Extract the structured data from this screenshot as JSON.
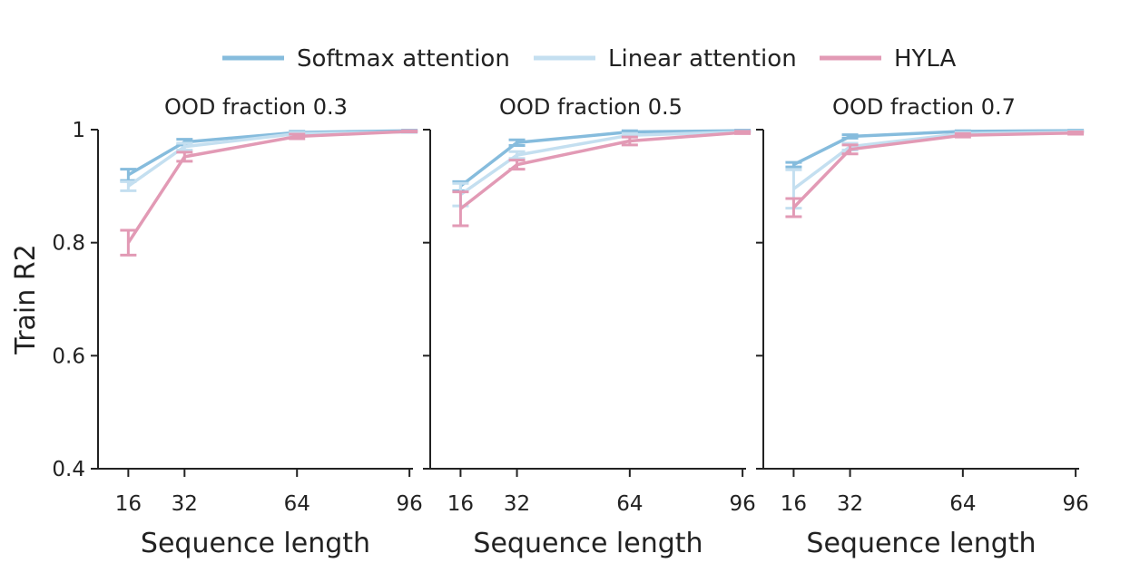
{
  "chart_data": [
    {
      "type": "line",
      "title": "OOD fraction 0.3",
      "xlabel": "Sequence length",
      "ylabel": "Train R2",
      "x": [
        16,
        32,
        64,
        96
      ],
      "x_ticks": [
        "16",
        "32",
        "64",
        "96"
      ],
      "xlim": [
        11,
        97
      ],
      "ylim": [
        0.4,
        1.0
      ],
      "y_ticks": [
        "0.4",
        "0.6",
        "0.8",
        "1"
      ],
      "y_tick_values": [
        0.4,
        0.6,
        0.8,
        1.0
      ],
      "grid": false,
      "series": [
        {
          "name": "Softmax attention",
          "values": [
            0.92,
            0.978,
            0.995,
            0.998
          ],
          "err": [
            0.01,
            0.005,
            0.002,
            0.001
          ]
        },
        {
          "name": "Linear attention",
          "values": [
            0.9,
            0.97,
            0.993,
            0.996
          ],
          "err": [
            0.008,
            0.006,
            0.002,
            0.001
          ]
        },
        {
          "name": "HYLA",
          "values": [
            0.8,
            0.952,
            0.988,
            0.997
          ],
          "err": [
            0.022,
            0.008,
            0.004,
            0.001
          ]
        }
      ]
    },
    {
      "type": "line",
      "title": "OOD fraction 0.5",
      "xlabel": "Sequence length",
      "ylabel": "",
      "x": [
        16,
        32,
        64,
        96
      ],
      "x_ticks": [
        "16",
        "32",
        "64",
        "96"
      ],
      "xlim": [
        11,
        97
      ],
      "ylim": [
        0.4,
        1.0
      ],
      "y_ticks": [
        "",
        "",
        "",
        ""
      ],
      "y_tick_values": [
        0.4,
        0.6,
        0.8,
        1.0
      ],
      "grid": false,
      "series": [
        {
          "name": "Softmax attention",
          "values": [
            0.9,
            0.977,
            0.996,
            0.998
          ],
          "err": [
            0.008,
            0.005,
            0.002,
            0.001
          ]
        },
        {
          "name": "Linear attention",
          "values": [
            0.885,
            0.955,
            0.99,
            0.996
          ],
          "err": [
            0.02,
            0.006,
            0.003,
            0.001
          ]
        },
        {
          "name": "HYLA",
          "values": [
            0.86,
            0.938,
            0.98,
            0.995
          ],
          "err": [
            0.03,
            0.008,
            0.007,
            0.002
          ]
        }
      ]
    },
    {
      "type": "line",
      "title": "OOD fraction 0.7",
      "xlabel": "Sequence length",
      "ylabel": "",
      "x": [
        16,
        32,
        64,
        96
      ],
      "x_ticks": [
        "16",
        "32",
        "64",
        "96"
      ],
      "xlim": [
        11,
        97
      ],
      "ylim": [
        0.4,
        1.0
      ],
      "y_ticks": [
        "",
        "",
        "",
        ""
      ],
      "y_tick_values": [
        0.4,
        0.6,
        0.8,
        1.0
      ],
      "grid": false,
      "series": [
        {
          "name": "Softmax attention",
          "values": [
            0.938,
            0.988,
            0.997,
            0.998
          ],
          "err": [
            0.004,
            0.003,
            0.001,
            0.001
          ]
        },
        {
          "name": "Linear attention",
          "values": [
            0.895,
            0.97,
            0.993,
            0.996
          ],
          "err": [
            0.034,
            0.006,
            0.002,
            0.001
          ]
        },
        {
          "name": "HYLA",
          "values": [
            0.862,
            0.965,
            0.99,
            0.994
          ],
          "err": [
            0.016,
            0.008,
            0.003,
            0.002
          ]
        }
      ]
    }
  ],
  "legend": {
    "placement": "top-center",
    "items": [
      {
        "label": "Softmax attention",
        "color": "#86bcdd"
      },
      {
        "label": "Linear attention",
        "color": "#c4dff0"
      },
      {
        "label": "HYLA",
        "color": "#e29ab5"
      }
    ]
  },
  "colors": {
    "Softmax attention": "#86bcdd",
    "Linear attention": "#c4dff0",
    "HYLA": "#e29ab5"
  }
}
